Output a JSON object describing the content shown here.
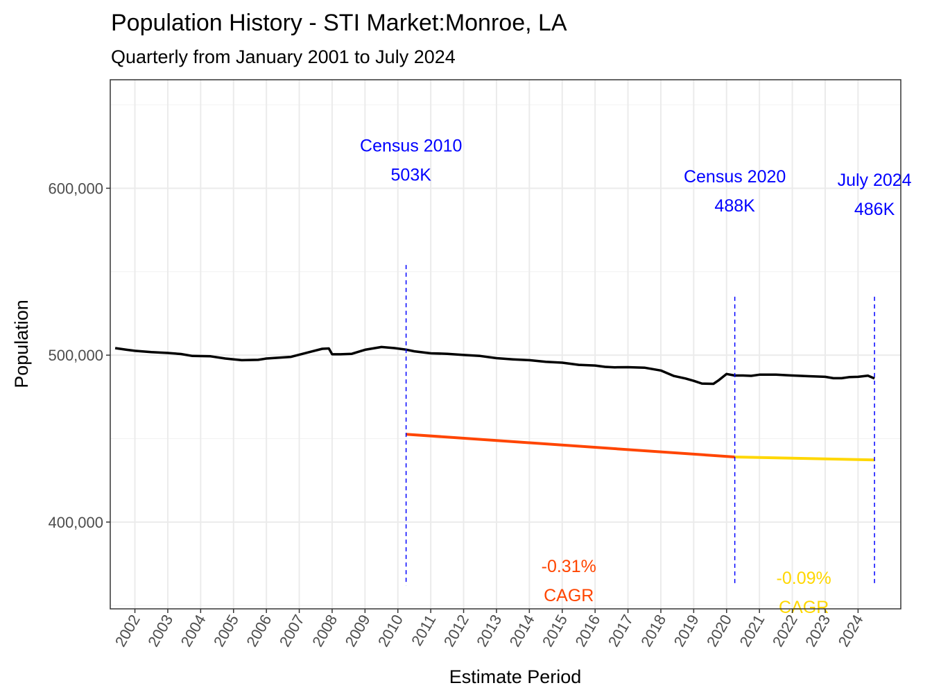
{
  "chart_data": {
    "type": "line",
    "title": "Population History - STI Market:Monroe, LA",
    "subtitle": "Quarterly from January 2001 to July 2024",
    "xlabel": "Estimate Period",
    "ylabel": "Population",
    "xlim": [
      2001.25,
      2025.3
    ],
    "ylim": [
      348000,
      665000
    ],
    "grid": true,
    "y_ticks": [
      400000,
      500000,
      600000
    ],
    "y_tick_labels": [
      "400,000",
      "500,000",
      "600,000"
    ],
    "x_ticks": [
      2002,
      2003,
      2004,
      2005,
      2006,
      2007,
      2008,
      2009,
      2010,
      2011,
      2012,
      2013,
      2014,
      2015,
      2016,
      2017,
      2018,
      2019,
      2020,
      2021,
      2022,
      2023,
      2024
    ],
    "x_tick_labels": [
      "2002",
      "2003",
      "2004",
      "2005",
      "2006",
      "2007",
      "2008",
      "2009",
      "2010",
      "2011",
      "2012",
      "2013",
      "2014",
      "2015",
      "2016",
      "2017",
      "2018",
      "2019",
      "2020",
      "2021",
      "2022",
      "2023",
      "2024"
    ],
    "series": [
      {
        "color": "#000000",
        "x": [
          2001.4,
          2001.75,
          2002.0,
          2002.5,
          2003.0,
          2003.4,
          2003.75,
          2004.3,
          2004.75,
          2005.25,
          2005.75,
          2006.0,
          2006.4,
          2006.75,
          2007.3,
          2007.7,
          2007.9,
          2008.0,
          2008.25,
          2008.6,
          2009.0,
          2009.5,
          2009.9,
          2010.25,
          2010.5,
          2011.0,
          2011.5,
          2012.0,
          2012.5,
          2013.0,
          2013.5,
          2014.0,
          2014.5,
          2015.0,
          2015.5,
          2016.0,
          2016.3,
          2016.6,
          2017.0,
          2017.5,
          2018.0,
          2018.4,
          2018.75,
          2019.0,
          2019.25,
          2019.6,
          2019.75,
          2020.0,
          2020.25,
          2020.5,
          2020.75,
          2021.0,
          2021.5,
          2022.0,
          2022.5,
          2023.0,
          2023.25,
          2023.5,
          2023.75,
          2024.0,
          2024.3,
          2024.5
        ],
        "y": [
          504200,
          503200,
          502600,
          501800,
          501300,
          500700,
          499500,
          499300,
          498000,
          497000,
          497200,
          498000,
          498500,
          499000,
          501800,
          503800,
          504000,
          500500,
          500500,
          500800,
          503200,
          504900,
          504200,
          503300,
          502300,
          501100,
          500800,
          500100,
          499500,
          498200,
          497500,
          497000,
          496000,
          495500,
          494200,
          493800,
          493000,
          492700,
          492800,
          492500,
          490800,
          487500,
          486000,
          484600,
          483000,
          482800,
          484800,
          488700,
          487800,
          487800,
          487600,
          488300,
          488300,
          487800,
          487400,
          487000,
          486200,
          486200,
          486900,
          487000,
          487700,
          486000
        ]
      },
      {
        "color": "#FF4500",
        "x": [
          2010.25,
          2020.25
        ],
        "y": [
          452600,
          439000
        ]
      },
      {
        "color": "#FFD700",
        "x": [
          2020.25,
          2024.5
        ],
        "y": [
          439000,
          437200
        ]
      }
    ],
    "vlines": [
      {
        "x": 2010.25,
        "y_from": 362000,
        "y_to": 554000,
        "color": "#0000FF"
      },
      {
        "x": 2020.25,
        "y_from": 362000,
        "y_to": 535000,
        "color": "#0000FF"
      },
      {
        "x": 2024.5,
        "y_from": 362000,
        "y_to": 535000,
        "color": "#0000FF"
      }
    ],
    "annotations": [
      {
        "x": 2010.4,
        "y": 622000,
        "color": "#0000FF",
        "line1": "Census 2010",
        "line2": "503K"
      },
      {
        "x": 2020.25,
        "y": 603500,
        "color": "#0000FF",
        "line1": "Census 2020",
        "line2": "488K"
      },
      {
        "x": 2024.5,
        "y": 601500,
        "color": "#0000FF",
        "line1": "July 2024",
        "line2": "486K"
      },
      {
        "x": 2015.2,
        "y": 370000,
        "color": "#FF4500",
        "line1": "-0.31%",
        "line2": "CAGR"
      },
      {
        "x": 2022.35,
        "y": 363000,
        "color": "#FFD700",
        "line1": "-0.09%",
        "line2": "CAGR"
      }
    ]
  }
}
